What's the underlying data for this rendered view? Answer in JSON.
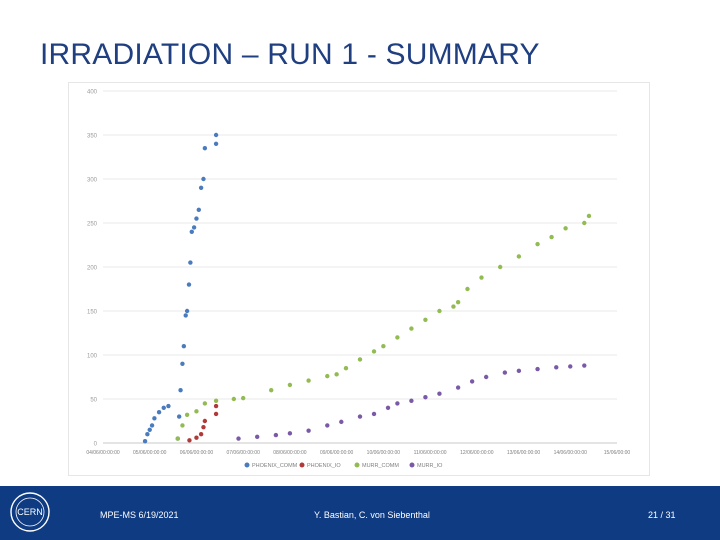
{
  "slide": {
    "title": "IRRADIATION – RUN 1 - SUMMARY"
  },
  "footer": {
    "left": "MPE-MS 6/19/2021",
    "center": "Y. Bastian, C. von Siebenthal",
    "page": "21 / 31",
    "logo_text": "CERN"
  },
  "colors": {
    "title": "#1f3f80",
    "footer_bg": "#0e3b82",
    "grid": "#e3e3e3",
    "axis_text": "#9a9a9a"
  },
  "chart_data": {
    "type": "scatter",
    "title": "",
    "xlabel": "",
    "ylabel": "",
    "ylim": [
      0,
      400
    ],
    "xlim": [
      0,
      11
    ],
    "yticks": [
      "0",
      "50",
      "100",
      "150",
      "200",
      "250",
      "300",
      "350",
      "400"
    ],
    "xticks": [
      "04/06/00:00:00",
      "05/06/00:00:00",
      "06/06/00:00:00",
      "07/06/00:00:00",
      "08/06/00:00:00",
      "09/06/00:00:00",
      "10/06/00:00:00",
      "11/06/00:00:00",
      "12/06/00:00:00",
      "13/06/00:00:00",
      "14/06/00:00:00",
      "15/06/00:00"
    ],
    "legend_position": "bottom",
    "series": [
      {
        "name": "PHOENIX_COMM",
        "color": "#4a7bbd",
        "points": [
          [
            0.9,
            2
          ],
          [
            0.95,
            10
          ],
          [
            1.0,
            15
          ],
          [
            1.05,
            20
          ],
          [
            1.1,
            28
          ],
          [
            1.2,
            35
          ],
          [
            1.3,
            40
          ],
          [
            1.4,
            42
          ],
          [
            1.6,
            5
          ],
          [
            1.63,
            30
          ],
          [
            1.66,
            60
          ],
          [
            1.7,
            90
          ],
          [
            1.73,
            110
          ],
          [
            1.77,
            145
          ],
          [
            1.8,
            150
          ],
          [
            1.84,
            180
          ],
          [
            1.87,
            205
          ],
          [
            1.9,
            240
          ],
          [
            1.95,
            245
          ],
          [
            2.0,
            255
          ],
          [
            2.05,
            265
          ],
          [
            2.1,
            290
          ],
          [
            2.15,
            300
          ],
          [
            2.18,
            335
          ],
          [
            2.42,
            340
          ],
          [
            2.42,
            350
          ]
        ]
      },
      {
        "name": "PHOENIX_IO",
        "color": "#b03a38",
        "points": [
          [
            1.85,
            3
          ],
          [
            2.0,
            6
          ],
          [
            2.1,
            10
          ],
          [
            2.15,
            18
          ],
          [
            2.18,
            25
          ],
          [
            2.42,
            33
          ],
          [
            2.42,
            42
          ]
        ]
      },
      {
        "name": "MURR_COMM",
        "color": "#92bb51",
        "points": [
          [
            1.6,
            5
          ],
          [
            1.7,
            20
          ],
          [
            1.8,
            32
          ],
          [
            2.0,
            36
          ],
          [
            2.18,
            45
          ],
          [
            2.42,
            48
          ],
          [
            2.8,
            50
          ],
          [
            3.0,
            51
          ],
          [
            3.6,
            60
          ],
          [
            4.0,
            66
          ],
          [
            4.4,
            71
          ],
          [
            4.8,
            76
          ],
          [
            5.0,
            78
          ],
          [
            5.2,
            85
          ],
          [
            5.5,
            95
          ],
          [
            5.8,
            104
          ],
          [
            6.0,
            110
          ],
          [
            6.3,
            120
          ],
          [
            6.6,
            130
          ],
          [
            6.9,
            140
          ],
          [
            7.2,
            150
          ],
          [
            7.5,
            155
          ],
          [
            7.6,
            160
          ],
          [
            7.8,
            175
          ],
          [
            8.1,
            188
          ],
          [
            8.5,
            200
          ],
          [
            8.9,
            212
          ],
          [
            9.3,
            226
          ],
          [
            9.6,
            234
          ],
          [
            9.9,
            244
          ],
          [
            10.3,
            250
          ],
          [
            10.4,
            258
          ]
        ]
      },
      {
        "name": "MURR_IO",
        "color": "#7a5aa6",
        "points": [
          [
            2.9,
            5
          ],
          [
            3.3,
            7
          ],
          [
            3.7,
            9
          ],
          [
            4.0,
            11
          ],
          [
            4.4,
            14
          ],
          [
            4.8,
            20
          ],
          [
            5.1,
            24
          ],
          [
            5.5,
            30
          ],
          [
            5.8,
            33
          ],
          [
            6.1,
            40
          ],
          [
            6.3,
            45
          ],
          [
            6.6,
            48
          ],
          [
            6.9,
            52
          ],
          [
            7.2,
            56
          ],
          [
            7.6,
            63
          ],
          [
            7.9,
            70
          ],
          [
            8.2,
            75
          ],
          [
            8.6,
            80
          ],
          [
            8.9,
            82
          ],
          [
            9.3,
            84
          ],
          [
            9.7,
            86
          ],
          [
            10.0,
            87
          ],
          [
            10.3,
            88
          ]
        ]
      }
    ]
  }
}
